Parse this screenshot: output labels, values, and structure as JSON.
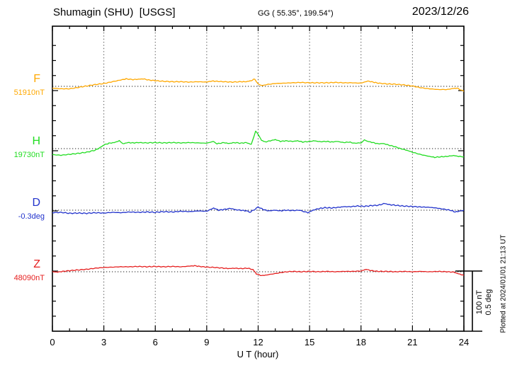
{
  "header": {
    "title": "Shumagin (SHU)  [USGS]",
    "coordinates": "GG ( 55.35°, 199.54°)",
    "date": "2023/12/26"
  },
  "x_axis": {
    "label": "U T (hour)",
    "tick_labels": [
      "0",
      "3",
      "6",
      "9",
      "12",
      "15",
      "18",
      "21",
      "24"
    ]
  },
  "scale_bar": {
    "labels": [
      "100 nT",
      "0.5 deg"
    ]
  },
  "footer_note": "Plotted at 2024/01/01 21:13 UT",
  "chart_data": {
    "type": "line",
    "title": "Shumagin (SHU) [USGS] magnetogram 2023/12/26",
    "xlabel": "U T (hour)",
    "xlim": [
      0,
      24
    ],
    "x_tick_step_hours": 3,
    "x_gridlines_hours": [
      3,
      6,
      9,
      12,
      15,
      18,
      21
    ],
    "grid": "vertical dotted 3-hour gridlines, dotted horizontal baseline per channel",
    "legend_position": "left margin channel labels",
    "scale": {
      "bar_nT": 100,
      "bar_deg": 0.5
    },
    "series": [
      {
        "name": "F",
        "baseline_label": "51910nT",
        "units": "nT",
        "color": "#FFA800",
        "points": [
          [
            0,
            -3
          ],
          [
            0.5,
            -4.1
          ],
          [
            1,
            -4.1
          ],
          [
            1.5,
            -1.8
          ],
          [
            2,
            0.6
          ],
          [
            2.5,
            3
          ],
          [
            3,
            4.7
          ],
          [
            3.5,
            7.7
          ],
          [
            4,
            10.6
          ],
          [
            4.3,
            12.4
          ],
          [
            4.7,
            11.2
          ],
          [
            5,
            11.8
          ],
          [
            5.3,
            12.4
          ],
          [
            5.6,
            10.6
          ],
          [
            6,
            9.4
          ],
          [
            6.5,
            8.3
          ],
          [
            7,
            7.7
          ],
          [
            7.5,
            7.7
          ],
          [
            8,
            7.1
          ],
          [
            8.5,
            7.7
          ],
          [
            9,
            7.1
          ],
          [
            9.3,
            8.8
          ],
          [
            9.6,
            8.3
          ],
          [
            10,
            7.7
          ],
          [
            10.5,
            7.1
          ],
          [
            11,
            7.7
          ],
          [
            11.3,
            7.7
          ],
          [
            11.6,
            9.4
          ],
          [
            11.8,
            12.4
          ],
          [
            12,
            3.5
          ],
          [
            12.2,
            1.2
          ],
          [
            12.5,
            3
          ],
          [
            13,
            4.7
          ],
          [
            13.5,
            5.3
          ],
          [
            14,
            5.9
          ],
          [
            14.5,
            6.5
          ],
          [
            15,
            5.9
          ],
          [
            15.5,
            5.9
          ],
          [
            16,
            5.9
          ],
          [
            16.5,
            6.5
          ],
          [
            17,
            5.9
          ],
          [
            17.5,
            5.9
          ],
          [
            18,
            5.3
          ],
          [
            18.4,
            8.8
          ],
          [
            18.7,
            7.1
          ],
          [
            19,
            5.3
          ],
          [
            19.5,
            4.1
          ],
          [
            20,
            3.5
          ],
          [
            20.5,
            2.4
          ],
          [
            21,
            0.6
          ],
          [
            21.5,
            -2.4
          ],
          [
            22,
            -4.1
          ],
          [
            22.5,
            -5.3
          ],
          [
            23,
            -5.3
          ],
          [
            23.4,
            -3.5
          ],
          [
            23.6,
            -3
          ],
          [
            24,
            -8.3
          ]
        ]
      },
      {
        "name": "H",
        "baseline_label": "19730nT",
        "units": "nT",
        "color": "#22DD22",
        "points": [
          [
            0,
            -10
          ],
          [
            0.5,
            -11
          ],
          [
            1,
            -9.5
          ],
          [
            1.5,
            -8
          ],
          [
            2,
            -6
          ],
          [
            2.5,
            -2.5
          ],
          [
            2.8,
            2
          ],
          [
            3,
            6
          ],
          [
            3.3,
            9
          ],
          [
            3.6,
            10
          ],
          [
            3.9,
            13
          ],
          [
            4.1,
            8
          ],
          [
            4.4,
            10
          ],
          [
            4.7,
            9.5
          ],
          [
            5,
            10
          ],
          [
            5.5,
            9.5
          ],
          [
            6,
            10
          ],
          [
            6.5,
            9.5
          ],
          [
            7,
            10
          ],
          [
            7.5,
            9.5
          ],
          [
            8,
            10
          ],
          [
            8.5,
            9.5
          ],
          [
            9,
            9
          ],
          [
            9.4,
            12
          ],
          [
            9.6,
            8
          ],
          [
            10,
            10
          ],
          [
            10.3,
            8.5
          ],
          [
            10.6,
            10
          ],
          [
            11,
            9
          ],
          [
            11.3,
            10
          ],
          [
            11.6,
            7
          ],
          [
            11.75,
            20
          ],
          [
            11.85,
            29
          ],
          [
            12,
            24
          ],
          [
            12.2,
            14
          ],
          [
            12.4,
            11
          ],
          [
            12.7,
            13
          ],
          [
            13,
            15
          ],
          [
            13.3,
            12
          ],
          [
            13.6,
            13
          ],
          [
            14,
            12
          ],
          [
            14.3,
            13
          ],
          [
            14.6,
            11
          ],
          [
            15,
            12
          ],
          [
            15.3,
            13
          ],
          [
            15.6,
            11.5
          ],
          [
            16,
            12
          ],
          [
            16.3,
            11
          ],
          [
            16.6,
            12
          ],
          [
            17,
            10
          ],
          [
            17.3,
            11
          ],
          [
            17.6,
            9
          ],
          [
            18,
            9.5
          ],
          [
            18.2,
            14
          ],
          [
            18.4,
            12
          ],
          [
            18.7,
            10
          ],
          [
            19,
            8
          ],
          [
            19.3,
            8.5
          ],
          [
            19.6,
            6
          ],
          [
            20,
            3
          ],
          [
            20.3,
            0
          ],
          [
            20.7,
            -3
          ],
          [
            21,
            -6
          ],
          [
            21.5,
            -10
          ],
          [
            22,
            -13
          ],
          [
            22.3,
            -14.5
          ],
          [
            22.7,
            -13.5
          ],
          [
            23,
            -13
          ],
          [
            23.4,
            -11.5
          ],
          [
            23.7,
            -13
          ],
          [
            24,
            -13.5
          ]
        ]
      },
      {
        "name": "D",
        "baseline_label": "-0.3deg",
        "units": "deg",
        "color": "#2233CC",
        "points": [
          [
            0,
            -0.021
          ],
          [
            0.5,
            -0.018
          ],
          [
            1,
            -0.026
          ],
          [
            1.5,
            -0.024
          ],
          [
            2,
            -0.026
          ],
          [
            2.5,
            -0.021
          ],
          [
            3,
            -0.024
          ],
          [
            3.5,
            -0.018
          ],
          [
            4,
            -0.021
          ],
          [
            4.5,
            -0.015
          ],
          [
            5,
            -0.018
          ],
          [
            5.5,
            -0.015
          ],
          [
            6,
            -0.018
          ],
          [
            6.5,
            -0.012
          ],
          [
            7,
            -0.015
          ],
          [
            7.5,
            -0.009
          ],
          [
            8,
            -0.012
          ],
          [
            8.5,
            -0.006
          ],
          [
            9,
            -0.009
          ],
          [
            9.4,
            0.018
          ],
          [
            9.7,
            0
          ],
          [
            10,
            0.006
          ],
          [
            10.4,
            0.015
          ],
          [
            10.7,
            0.003
          ],
          [
            11,
            0
          ],
          [
            11.3,
            -0.006
          ],
          [
            11.5,
            -0.018
          ],
          [
            11.8,
            0.006
          ],
          [
            12,
            0.026
          ],
          [
            12.3,
            0.006
          ],
          [
            12.6,
            -0.006
          ],
          [
            13,
            0
          ],
          [
            13.3,
            -0.006
          ],
          [
            13.6,
            0
          ],
          [
            14,
            -0.003
          ],
          [
            14.4,
            0
          ],
          [
            14.9,
            -0.021
          ],
          [
            15.2,
            0
          ],
          [
            15.5,
            0.012
          ],
          [
            15.9,
            0.021
          ],
          [
            16.3,
            0.018
          ],
          [
            16.7,
            0.024
          ],
          [
            17,
            0.029
          ],
          [
            17.4,
            0.029
          ],
          [
            17.8,
            0.035
          ],
          [
            18.2,
            0.032
          ],
          [
            18.6,
            0.038
          ],
          [
            19,
            0.041
          ],
          [
            19.4,
            0.056
          ],
          [
            19.6,
            0.047
          ],
          [
            20,
            0.041
          ],
          [
            20.4,
            0.035
          ],
          [
            20.8,
            0.032
          ],
          [
            21.2,
            0.029
          ],
          [
            21.6,
            0.026
          ],
          [
            22,
            0.024
          ],
          [
            22.4,
            0.018
          ],
          [
            22.8,
            0.009
          ],
          [
            23.2,
            0
          ],
          [
            23.5,
            -0.015
          ],
          [
            23.8,
            -0.006
          ],
          [
            24,
            0
          ]
        ]
      },
      {
        "name": "Z",
        "baseline_label": "48090nT",
        "units": "nT",
        "color": "#E62020",
        "points": [
          [
            0,
            0
          ],
          [
            0.3,
            -0.6
          ],
          [
            0.6,
            0.6
          ],
          [
            1,
            1.8
          ],
          [
            1.5,
            3
          ],
          [
            2,
            4.1
          ],
          [
            2.5,
            5.9
          ],
          [
            3,
            7.1
          ],
          [
            3.5,
            7.7
          ],
          [
            4,
            8.3
          ],
          [
            4.5,
            8.3
          ],
          [
            5,
            8.8
          ],
          [
            5.5,
            8.3
          ],
          [
            6,
            8.8
          ],
          [
            6.5,
            8.3
          ],
          [
            7,
            8.8
          ],
          [
            7.5,
            8.3
          ],
          [
            8,
            9.4
          ],
          [
            8.3,
            10
          ],
          [
            8.6,
            8.8
          ],
          [
            9,
            7.7
          ],
          [
            9.5,
            7.1
          ],
          [
            10,
            5.9
          ],
          [
            10.3,
            5.3
          ],
          [
            10.6,
            5.9
          ],
          [
            11,
            5.3
          ],
          [
            11.4,
            5.9
          ],
          [
            11.7,
            3.5
          ],
          [
            11.9,
            -3.5
          ],
          [
            12.2,
            -6.5
          ],
          [
            12.5,
            -5.3
          ],
          [
            13,
            -3
          ],
          [
            13.5,
            -0.6
          ],
          [
            14,
            0.6
          ],
          [
            14.5,
            0
          ],
          [
            15,
            0.6
          ],
          [
            15.5,
            0
          ],
          [
            16,
            0.6
          ],
          [
            16.5,
            0
          ],
          [
            17,
            0.6
          ],
          [
            17.5,
            0.6
          ],
          [
            18,
            1.2
          ],
          [
            18.3,
            4.1
          ],
          [
            18.6,
            1.8
          ],
          [
            19,
            0.6
          ],
          [
            19.5,
            0.6
          ],
          [
            20,
            0
          ],
          [
            20.5,
            0.6
          ],
          [
            21,
            0
          ],
          [
            21.5,
            0.6
          ],
          [
            22,
            0
          ],
          [
            22.5,
            0.6
          ],
          [
            23,
            0
          ],
          [
            23.4,
            -0.6
          ],
          [
            23.7,
            -3.5
          ],
          [
            24,
            -5.9
          ]
        ]
      }
    ]
  }
}
